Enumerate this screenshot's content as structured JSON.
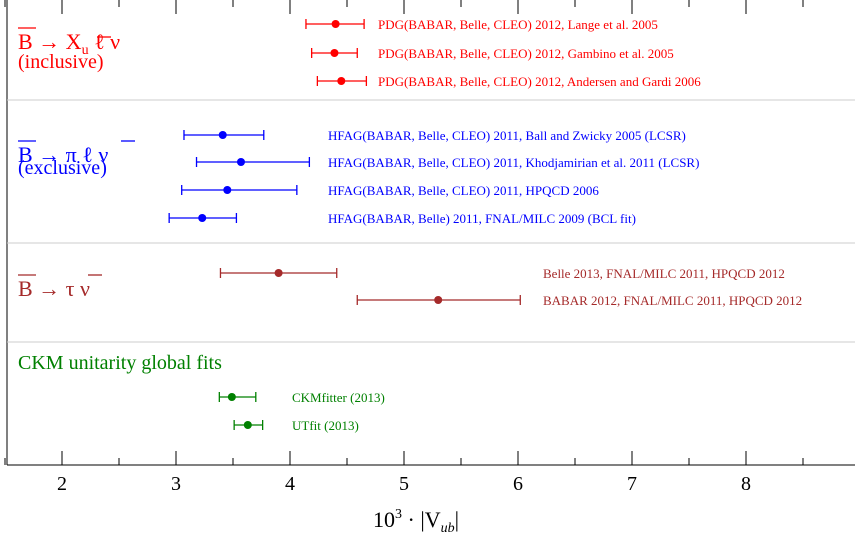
{
  "chart_data": {
    "type": "scatter",
    "xlabel_parts": {
      "base": "10",
      "exp": "3",
      "mid": " · |V",
      "sub": "ub",
      "end": "|"
    },
    "xlim": [
      1.5,
      8.9
    ],
    "xticks": [
      "2",
      "3",
      "4",
      "5",
      "6",
      "7",
      "8"
    ],
    "grid": false,
    "groups": [
      {
        "label_main": "B → X",
        "label_sub": "u",
        "label_tail": " ℓ ν",
        "label2": "(inclusive)",
        "color": "#ff0000",
        "series": [
          {
            "name": "PDG(BABAR, Belle, CLEO) 2012,   Lange et al. 2005",
            "value": 4.4,
            "low": 4.14,
            "high": 4.65
          },
          {
            "name": "PDG(BABAR, Belle, CLEO) 2012,   Gambino et al. 2005",
            "value": 4.39,
            "low": 4.19,
            "high": 4.59
          },
          {
            "name": "PDG(BABAR, Belle, CLEO) 2012,   Andersen and Gardi 2006",
            "value": 4.45,
            "low": 4.24,
            "high": 4.67
          }
        ]
      },
      {
        "label_main": "B → π ℓ ν",
        "label2": "(exclusive)",
        "color": "#0000ff",
        "series": [
          {
            "name": "HFAG(BABAR, Belle, CLEO) 2011,   Ball and Zwicky 2005 (LCSR)",
            "value": 3.41,
            "low": 3.07,
            "high": 3.77
          },
          {
            "name": "HFAG(BABAR, Belle, CLEO) 2011,   Khodjamirian et al. 2011 (LCSR)",
            "value": 3.57,
            "low": 3.18,
            "high": 4.17
          },
          {
            "name": "HFAG(BABAR, Belle, CLEO) 2011,   HPQCD 2006",
            "value": 3.45,
            "low": 3.05,
            "high": 4.06
          },
          {
            "name": "HFAG(BABAR, Belle) 2011,   FNAL/MILC 2009 (BCL fit)",
            "value": 3.23,
            "low": 2.94,
            "high": 3.53
          }
        ]
      },
      {
        "label_main": "B → τ ν",
        "color": "#a52a2a",
        "series": [
          {
            "name": "Belle 2013,   FNAL/MILC 2011, HPQCD 2012",
            "value": 3.9,
            "low": 3.39,
            "high": 4.41
          },
          {
            "name": "BABAR 2012,   FNAL/MILC 2011, HPQCD 2012",
            "value": 5.3,
            "low": 4.59,
            "high": 6.02
          }
        ]
      },
      {
        "label_main": "CKM unitarity global fits",
        "color": "#008000",
        "series": [
          {
            "name": "CKMfitter (2013)",
            "value": 3.49,
            "low": 3.38,
            "high": 3.7
          },
          {
            "name": "UTfit (2013)",
            "value": 3.63,
            "low": 3.51,
            "high": 3.76
          }
        ]
      }
    ]
  }
}
